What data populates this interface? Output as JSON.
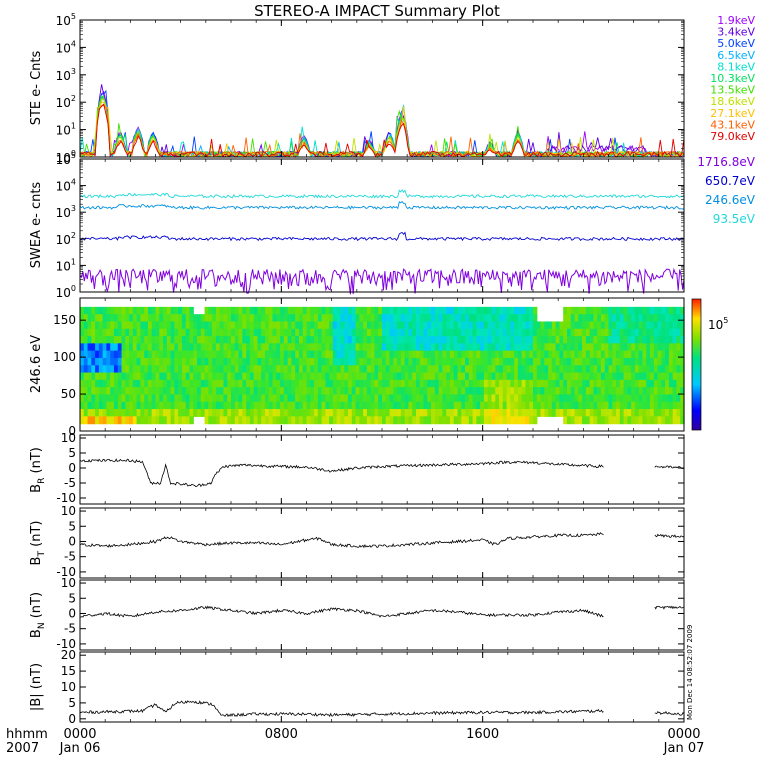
{
  "title": "STEREO-A IMPACT Summary Plot",
  "stamp": "Mon Dec 14 08:52:07 2009",
  "time_axis": {
    "corner_top": "hhmm",
    "corner_bottom": "2007",
    "ticks": [
      {
        "hhmm": "0000",
        "date": "Jan 06",
        "hour": 0
      },
      {
        "hhmm": "0800",
        "date": "",
        "hour": 8
      },
      {
        "hhmm": "1600",
        "date": "",
        "hour": 16
      },
      {
        "hhmm": "0000",
        "date": "Jan 07",
        "hour": 24
      }
    ]
  },
  "colors": {
    "ste": [
      "#a000ff",
      "#6000e0",
      "#0040ff",
      "#00b0ff",
      "#00e0d0",
      "#00e060",
      "#40e000",
      "#c0e000",
      "#ffc000",
      "#ff6000",
      "#e00000"
    ],
    "swea": [
      "#8000e0",
      "#0000d0",
      "#0090e0",
      "#20d8d8"
    ]
  },
  "chart_data": [
    {
      "type": "line",
      "panel": "ste",
      "ylabel": "STE e- Cnts",
      "yscale": "log",
      "ylim": [
        1,
        100000
      ],
      "yticks": [
        {
          "label": "10",
          "exp": "0",
          "value": 1
        },
        {
          "label": "10",
          "exp": "1",
          "value": 10
        },
        {
          "label": "10",
          "exp": "2",
          "value": 100
        },
        {
          "label": "10",
          "exp": "3",
          "value": 1000
        },
        {
          "label": "10",
          "exp": "4",
          "value": 10000
        },
        {
          "label": "10",
          "exp": "5",
          "value": 100000
        }
      ],
      "series": [
        {
          "name": "1.9keV",
          "color_index": 0
        },
        {
          "name": "3.4keV",
          "color_index": 1
        },
        {
          "name": "5.0keV",
          "color_index": 2
        },
        {
          "name": "6.5keV",
          "color_index": 3
        },
        {
          "name": "8.1keV",
          "color_index": 4
        },
        {
          "name": "10.3keV",
          "color_index": 5
        },
        {
          "name": "13.5keV",
          "color_index": 6
        },
        {
          "name": "18.6keV",
          "color_index": 7
        },
        {
          "name": "27.1keV",
          "color_index": 8
        },
        {
          "name": "43.1keV",
          "color_index": 9
        },
        {
          "name": "79.0keV",
          "color_index": 10
        }
      ],
      "events": [
        {
          "hour": 0.9,
          "peak": 300
        },
        {
          "hour": 1.6,
          "peak": 10
        },
        {
          "hour": 2.3,
          "peak": 15
        },
        {
          "hour": 2.9,
          "peak": 10
        },
        {
          "hour": 8.9,
          "peak": 7
        },
        {
          "hour": 11.5,
          "peak": 5
        },
        {
          "hour": 12.3,
          "peak": 10
        },
        {
          "hour": 12.8,
          "peak": 55
        },
        {
          "hour": 16.3,
          "peak": 4
        },
        {
          "hour": 17.4,
          "peak": 10
        }
      ]
    },
    {
      "type": "line",
      "panel": "swea",
      "ylabel": "SWEA e- cnts",
      "yscale": "log",
      "ylim": [
        1,
        100000
      ],
      "yticks": [
        {
          "label": "10",
          "exp": "0",
          "value": 1
        },
        {
          "label": "10",
          "exp": "1",
          "value": 10
        },
        {
          "label": "10",
          "exp": "2",
          "value": 100
        },
        {
          "label": "10",
          "exp": "3",
          "value": 1000
        },
        {
          "label": "10",
          "exp": "4",
          "value": 10000
        },
        {
          "label": "10",
          "exp": "5",
          "value": 100000
        }
      ],
      "series": [
        {
          "name": "1716.8eV",
          "color_index": 0,
          "level": 4
        },
        {
          "name": "650.7eV",
          "color_index": 1,
          "level": 100
        },
        {
          "name": "246.6eV",
          "color_index": 2,
          "level": 1500
        },
        {
          "name": "93.5eV",
          "color_index": 3,
          "level": 4000
        }
      ]
    },
    {
      "type": "heatmap",
      "panel": "pad",
      "ylabel": "246.6 eV",
      "ylim": [
        0,
        180
      ],
      "yticks": [
        0,
        50,
        100,
        150
      ],
      "colorbar_label": "10",
      "colorbar_exp": "5"
    },
    {
      "type": "line",
      "panel": "br",
      "ylabel": "B",
      "ylabel_sub": "R",
      "ylabel_unit": " (nT)",
      "ylim": [
        -12,
        11
      ],
      "yticks": [
        10,
        5,
        0,
        -5,
        -10
      ],
      "gaps": [
        [
          20.8,
          22.8
        ]
      ],
      "knots": [
        [
          0,
          2.5
        ],
        [
          2,
          2.5
        ],
        [
          2.5,
          2.0
        ],
        [
          2.8,
          -5
        ],
        [
          3.2,
          -5
        ],
        [
          3.4,
          1
        ],
        [
          3.6,
          -5
        ],
        [
          4.2,
          -5.5
        ],
        [
          4.6,
          -6
        ],
        [
          5.2,
          -5
        ],
        [
          5.4,
          -2
        ],
        [
          5.7,
          0.5
        ],
        [
          6.5,
          1
        ],
        [
          8,
          0.5
        ],
        [
          9,
          0.3
        ],
        [
          10,
          -1
        ],
        [
          11,
          0
        ],
        [
          12,
          0.5
        ],
        [
          14,
          1
        ],
        [
          15,
          1.2
        ],
        [
          16,
          1.5
        ],
        [
          17,
          2
        ],
        [
          18,
          1.8
        ],
        [
          19,
          1.2
        ],
        [
          20,
          0.8
        ],
        [
          20.8,
          0.5
        ],
        [
          22.8,
          0.5
        ],
        [
          24,
          0
        ]
      ]
    },
    {
      "type": "line",
      "panel": "bt",
      "ylabel": "B",
      "ylabel_sub": "T",
      "ylabel_unit": " (nT)",
      "ylim": [
        -12,
        11
      ],
      "yticks": [
        10,
        5,
        0,
        -5,
        -10
      ],
      "gaps": [
        [
          20.8,
          22.8
        ]
      ],
      "knots": [
        [
          0,
          -1
        ],
        [
          1,
          -1.5
        ],
        [
          2,
          -1
        ],
        [
          3,
          0
        ],
        [
          3.5,
          1.5
        ],
        [
          4,
          0
        ],
        [
          5,
          -1
        ],
        [
          6,
          -0.5
        ],
        [
          7,
          -0.5
        ],
        [
          8,
          -1
        ],
        [
          9,
          0.5
        ],
        [
          9.5,
          1.0
        ],
        [
          10,
          -1
        ],
        [
          11,
          -1.5
        ],
        [
          12,
          -1.5
        ],
        [
          13,
          -1
        ],
        [
          14,
          -0.5
        ],
        [
          15,
          0
        ],
        [
          16,
          0.5
        ],
        [
          16.5,
          -1
        ],
        [
          17,
          1
        ],
        [
          18,
          1.5
        ],
        [
          19,
          2
        ],
        [
          20,
          2
        ],
        [
          20.8,
          2.5
        ],
        [
          22.8,
          2
        ],
        [
          24,
          1.5
        ]
      ]
    },
    {
      "type": "line",
      "panel": "bn",
      "ylabel": "B",
      "ylabel_sub": "N",
      "ylabel_unit": " (nT)",
      "ylim": [
        -12,
        11
      ],
      "yticks": [
        10,
        5,
        0,
        -5,
        -10
      ],
      "gaps": [
        [
          20.8,
          22.8
        ]
      ],
      "knots": [
        [
          0,
          -1
        ],
        [
          1,
          0
        ],
        [
          2,
          -1
        ],
        [
          3,
          0.5
        ],
        [
          4,
          1
        ],
        [
          5,
          2
        ],
        [
          6,
          1
        ],
        [
          7,
          0
        ],
        [
          8,
          1
        ],
        [
          9,
          0
        ],
        [
          10,
          1.5
        ],
        [
          11,
          1
        ],
        [
          12,
          -1
        ],
        [
          13,
          0
        ],
        [
          14,
          1
        ],
        [
          15,
          0.5
        ],
        [
          16,
          -0.5
        ],
        [
          17,
          -0.5
        ],
        [
          18,
          -0.5
        ],
        [
          19,
          0.5
        ],
        [
          20,
          1
        ],
        [
          20.8,
          -1
        ],
        [
          22.8,
          2
        ],
        [
          24,
          2
        ]
      ]
    },
    {
      "type": "line",
      "panel": "bmag",
      "ylabel": "|B| (nT)",
      "ylim": [
        -1,
        21
      ],
      "yticks": [
        20,
        15,
        10,
        5,
        0
      ],
      "gaps": [
        [
          20.8,
          22.8
        ]
      ],
      "knots": [
        [
          0,
          2
        ],
        [
          2.5,
          2.5
        ],
        [
          3,
          4.5
        ],
        [
          3.4,
          2
        ],
        [
          3.8,
          5
        ],
        [
          4.5,
          5.5
        ],
        [
          5.3,
          4.5
        ],
        [
          5.6,
          1
        ],
        [
          7,
          1.5
        ],
        [
          9,
          1.5
        ],
        [
          10,
          1.2
        ],
        [
          12,
          1.5
        ],
        [
          14,
          1.8
        ],
        [
          16,
          2
        ],
        [
          18,
          2
        ],
        [
          20.8,
          2.5
        ],
        [
          22.8,
          2
        ],
        [
          24,
          1.5
        ]
      ]
    }
  ]
}
